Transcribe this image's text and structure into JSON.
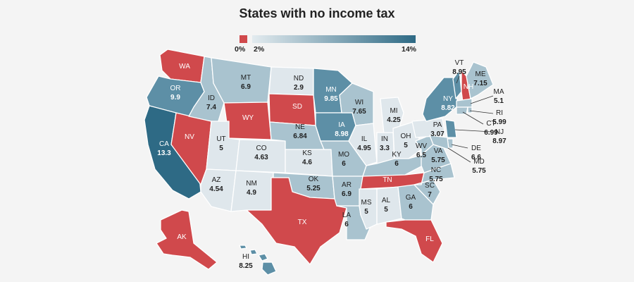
{
  "title": "States with no income tax",
  "legend": {
    "zero_label": "0%",
    "min_label": "2%",
    "max_label": "14%",
    "zero_color": "#d0494c",
    "min_color": "#e3ebef",
    "max_color": "#2e6a85"
  },
  "colors": {
    "zero": "#d0494c",
    "light": "#dfe7ec",
    "mid": "#a9c3cf",
    "dark": "#5d8fa6",
    "darkest": "#2e6a85"
  },
  "states": [
    {
      "abbr": "WA",
      "rate": null,
      "tier": "zero"
    },
    {
      "abbr": "OR",
      "rate": "9.9",
      "tier": "dark"
    },
    {
      "abbr": "CA",
      "rate": "13.3",
      "tier": "darkest"
    },
    {
      "abbr": "NV",
      "rate": null,
      "tier": "zero"
    },
    {
      "abbr": "ID",
      "rate": "7.4",
      "tier": "mid"
    },
    {
      "abbr": "MT",
      "rate": "6.9",
      "tier": "mid"
    },
    {
      "abbr": "WY",
      "rate": null,
      "tier": "zero"
    },
    {
      "abbr": "UT",
      "rate": "5",
      "tier": "light"
    },
    {
      "abbr": "AZ",
      "rate": "4.54",
      "tier": "light"
    },
    {
      "abbr": "CO",
      "rate": "4.63",
      "tier": "light"
    },
    {
      "abbr": "NM",
      "rate": "4.9",
      "tier": "light"
    },
    {
      "abbr": "ND",
      "rate": "2.9",
      "tier": "light"
    },
    {
      "abbr": "SD",
      "rate": null,
      "tier": "zero"
    },
    {
      "abbr": "NE",
      "rate": "6.84",
      "tier": "mid"
    },
    {
      "abbr": "KS",
      "rate": "4.6",
      "tier": "light"
    },
    {
      "abbr": "OK",
      "rate": "5.25",
      "tier": "mid"
    },
    {
      "abbr": "TX",
      "rate": null,
      "tier": "zero"
    },
    {
      "abbr": "MN",
      "rate": "9.85",
      "tier": "dark"
    },
    {
      "abbr": "IA",
      "rate": "8.98",
      "tier": "dark"
    },
    {
      "abbr": "MO",
      "rate": "6",
      "tier": "mid"
    },
    {
      "abbr": "AR",
      "rate": "6.9",
      "tier": "mid"
    },
    {
      "abbr": "LA",
      "rate": "6",
      "tier": "mid"
    },
    {
      "abbr": "WI",
      "rate": "7.65",
      "tier": "mid"
    },
    {
      "abbr": "IL",
      "rate": "4.95",
      "tier": "light"
    },
    {
      "abbr": "MI",
      "rate": "4.25",
      "tier": "light"
    },
    {
      "abbr": "IN",
      "rate": "3.3",
      "tier": "light"
    },
    {
      "abbr": "OH",
      "rate": "5",
      "tier": "light"
    },
    {
      "abbr": "KY",
      "rate": "6",
      "tier": "mid"
    },
    {
      "abbr": "TN",
      "rate": null,
      "tier": "zero"
    },
    {
      "abbr": "MS",
      "rate": "5",
      "tier": "light"
    },
    {
      "abbr": "AL",
      "rate": "5",
      "tier": "light"
    },
    {
      "abbr": "GA",
      "rate": "6",
      "tier": "mid"
    },
    {
      "abbr": "FL",
      "rate": null,
      "tier": "zero"
    },
    {
      "abbr": "SC",
      "rate": "7",
      "tier": "mid"
    },
    {
      "abbr": "NC",
      "rate": "5.75",
      "tier": "mid"
    },
    {
      "abbr": "VA",
      "rate": "5.75",
      "tier": "mid"
    },
    {
      "abbr": "WV",
      "rate": "6.5",
      "tier": "mid"
    },
    {
      "abbr": "PA",
      "rate": "3.07",
      "tier": "light"
    },
    {
      "abbr": "NY",
      "rate": "8.82",
      "tier": "dark"
    },
    {
      "abbr": "VT",
      "rate": "8.95",
      "tier": "dark"
    },
    {
      "abbr": "NH",
      "rate": null,
      "tier": "zero"
    },
    {
      "abbr": "ME",
      "rate": "7.15",
      "tier": "mid"
    },
    {
      "abbr": "MA",
      "rate": "5.1",
      "tier": "mid"
    },
    {
      "abbr": "RI",
      "rate": "5.99",
      "tier": "mid"
    },
    {
      "abbr": "CT",
      "rate": "6.99",
      "tier": "mid"
    },
    {
      "abbr": "NJ",
      "rate": "8.97",
      "tier": "dark"
    },
    {
      "abbr": "DE",
      "rate": "6.6",
      "tier": "mid"
    },
    {
      "abbr": "MD",
      "rate": "5.75",
      "tier": "mid"
    },
    {
      "abbr": "AK",
      "rate": null,
      "tier": "zero"
    },
    {
      "abbr": "HI",
      "rate": "8.25",
      "tier": "dark"
    }
  ]
}
